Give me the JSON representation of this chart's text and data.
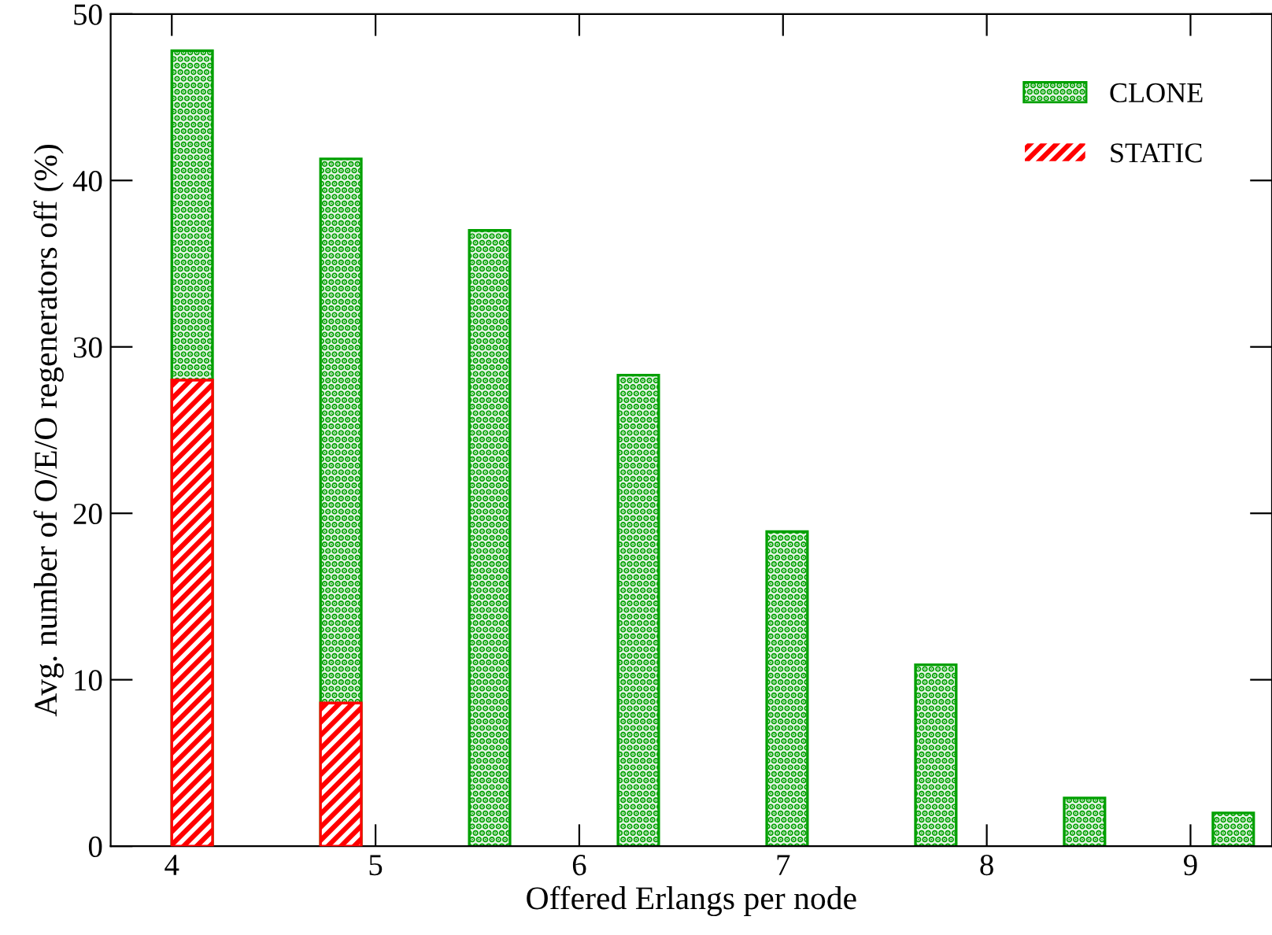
{
  "chart_data": {
    "type": "bar",
    "xlabel": "Offered Erlangs per node",
    "ylabel": "Avg. number of O/E/O regenerators off (%)",
    "x": [
      4.1,
      4.83,
      5.56,
      6.29,
      7.02,
      7.75,
      8.48,
      9.21
    ],
    "series": [
      {
        "name": "CLONE",
        "color": "#00a000",
        "values": [
          47.8,
          41.3,
          37.0,
          28.3,
          18.9,
          10.9,
          2.9,
          2.0
        ]
      },
      {
        "name": "STATIC",
        "color": "#ff0000",
        "values": [
          28.0,
          8.6,
          null,
          null,
          null,
          null,
          null,
          null
        ]
      }
    ],
    "xlim": [
      3.7,
      9.4
    ],
    "xticks": [
      4,
      5,
      6,
      7,
      8,
      9
    ],
    "ylim": [
      0,
      50
    ],
    "yticks": [
      0,
      10,
      20,
      30,
      40,
      50
    ],
    "legend": "top right",
    "grid": false
  }
}
